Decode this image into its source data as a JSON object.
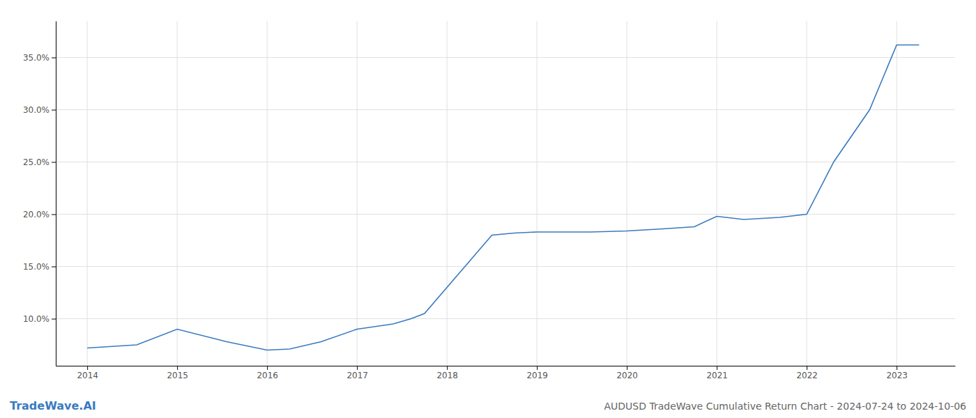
{
  "chart_data": {
    "type": "line",
    "title": "AUDUSD TradeWave Cumulative Return Chart - 2024-07-24 to 2024-10-06",
    "annotations": [
      "TradeWave.AI"
    ],
    "color": "#3a7abf",
    "x": [
      2014.0,
      2014.55,
      2015.0,
      2015.55,
      2016.0,
      2016.25,
      2016.6,
      2017.0,
      2017.4,
      2017.6,
      2017.75,
      2018.5,
      2018.75,
      2019.0,
      2019.3,
      2019.6,
      2020.0,
      2020.4,
      2020.75,
      2021.0,
      2021.3,
      2021.7,
      2022.0,
      2022.3,
      2022.7,
      2023.0,
      2023.25
    ],
    "values": [
      7.2,
      7.5,
      9.0,
      7.8,
      7.0,
      7.1,
      7.8,
      9.0,
      9.5,
      10.0,
      10.5,
      18.0,
      18.2,
      18.3,
      18.3,
      18.3,
      18.4,
      18.6,
      18.8,
      19.8,
      19.5,
      19.7,
      20.0,
      25.0,
      30.0,
      36.2,
      36.2
    ],
    "xlim": [
      2013.65,
      2023.65
    ],
    "xticks": [
      2014,
      2015,
      2016,
      2017,
      2018,
      2019,
      2020,
      2021,
      2022,
      2023
    ],
    "ylim": [
      5.5,
      38.5
    ],
    "yticks": [
      {
        "value": 10.0,
        "label": "10.0%"
      },
      {
        "value": 15.0,
        "label": "15.0%"
      },
      {
        "value": 20.0,
        "label": "20.0%"
      },
      {
        "value": 25.0,
        "label": "25.0%"
      },
      {
        "value": 30.0,
        "label": "30.0%"
      },
      {
        "value": 35.0,
        "label": "35.0%"
      }
    ],
    "grid": true
  }
}
